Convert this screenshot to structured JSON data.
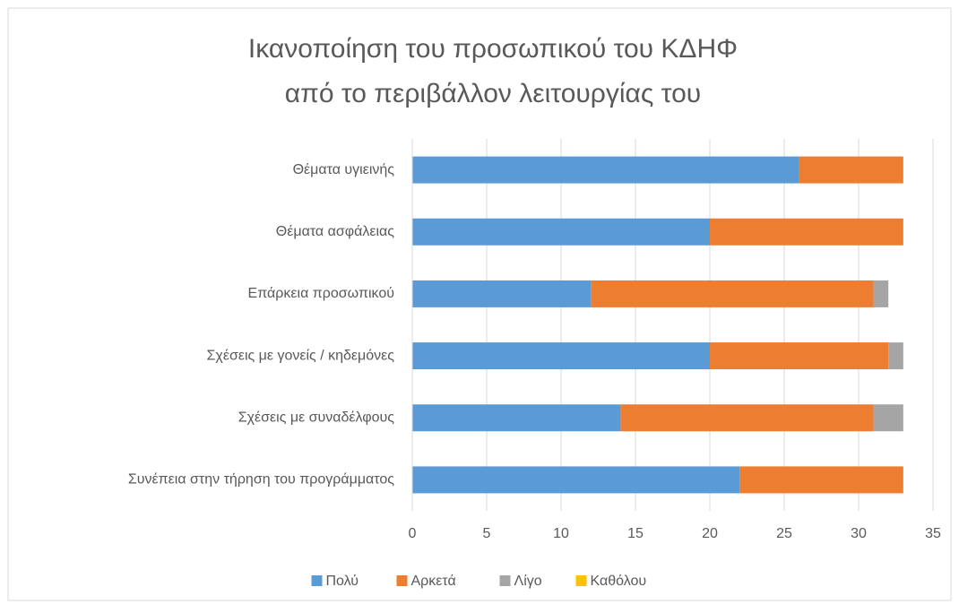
{
  "chart_data": {
    "type": "stacked-barh",
    "title": [
      "Ικανοποίηση του προσωπικού του ΚΔΗΦ",
      "από το περιβάλλον λειτουργίας του"
    ],
    "categories": [
      "Θέματα υγιεινής",
      "Θέματα ασφάλειας",
      "Επάρκεια προσωπικού",
      "Σχέσεις με γονείς / κηδεμόνες",
      "Σχέσεις με συναδέλφους",
      "Συνέπεια στην τήρηση του προγράμματος"
    ],
    "series": [
      {
        "name": "Πολύ",
        "color": "#5b9bd5",
        "values": [
          26,
          20,
          12,
          20,
          14,
          22
        ]
      },
      {
        "name": "Αρκετά",
        "color": "#ed7d31",
        "values": [
          7,
          13,
          19,
          12,
          17,
          11
        ]
      },
      {
        "name": "Λίγο",
        "color": "#a5a5a5",
        "values": [
          0,
          0,
          1,
          1,
          2,
          0
        ]
      },
      {
        "name": "Καθόλου",
        "color": "#ffc000",
        "values": [
          0,
          0,
          0,
          0,
          0,
          0
        ]
      }
    ],
    "xlim": [
      0,
      35
    ],
    "xticks": [
      0,
      5,
      10,
      15,
      20,
      25,
      30,
      35
    ],
    "grid": true,
    "legend": "bottom"
  }
}
